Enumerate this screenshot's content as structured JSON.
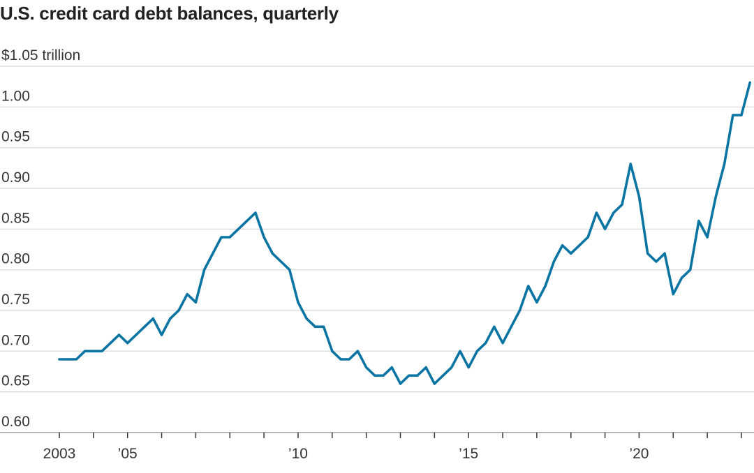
{
  "chart_data": {
    "type": "line",
    "title": "U.S. credit card debt balances, quarterly",
    "xlabel": "",
    "ylabel": "",
    "ylim": [
      0.6,
      1.05
    ],
    "y_ticks": [
      {
        "value": 1.05,
        "label": "$1.05 trillion"
      },
      {
        "value": 1.0,
        "label": "1.00"
      },
      {
        "value": 0.95,
        "label": "0.95"
      },
      {
        "value": 0.9,
        "label": "0.90"
      },
      {
        "value": 0.85,
        "label": "0.85"
      },
      {
        "value": 0.8,
        "label": "0.80"
      },
      {
        "value": 0.75,
        "label": "0.75"
      },
      {
        "value": 0.7,
        "label": "0.70"
      },
      {
        "value": 0.65,
        "label": "0.65"
      },
      {
        "value": 0.6,
        "label": "0.60"
      }
    ],
    "x_tick_years": [
      2003,
      2004,
      2005,
      2006,
      2007,
      2008,
      2009,
      2010,
      2011,
      2012,
      2013,
      2014,
      2015,
      2016,
      2017,
      2018,
      2019,
      2020,
      2021,
      2022,
      2023
    ],
    "x_tick_labels": [
      {
        "year": 2003,
        "label": "2003"
      },
      {
        "year": 2005,
        "label": "’05"
      },
      {
        "year": 2010,
        "label": "’10"
      },
      {
        "year": 2015,
        "label": "’15"
      },
      {
        "year": 2020,
        "label": "’20"
      }
    ],
    "grid": true,
    "legend": "none",
    "colors": {
      "line": "#0a74a3",
      "grid": "#d6d6d6",
      "text": "#222222"
    },
    "series": [
      {
        "x": [
          "2003 Q1",
          "2003 Q2",
          "2003 Q3",
          "2003 Q4",
          "2004 Q1",
          "2004 Q2",
          "2004 Q3",
          "2004 Q4",
          "2005 Q1",
          "2005 Q2",
          "2005 Q3",
          "2005 Q4",
          "2006 Q1",
          "2006 Q2",
          "2006 Q3",
          "2006 Q4",
          "2007 Q1",
          "2007 Q2",
          "2007 Q3",
          "2007 Q4",
          "2008 Q1",
          "2008 Q2",
          "2008 Q3",
          "2008 Q4",
          "2009 Q1",
          "2009 Q2",
          "2009 Q3",
          "2009 Q4",
          "2010 Q1",
          "2010 Q2",
          "2010 Q3",
          "2010 Q4",
          "2011 Q1",
          "2011 Q2",
          "2011 Q3",
          "2011 Q4",
          "2012 Q1",
          "2012 Q2",
          "2012 Q3",
          "2012 Q4",
          "2013 Q1",
          "2013 Q2",
          "2013 Q3",
          "2013 Q4",
          "2014 Q1",
          "2014 Q2",
          "2014 Q3",
          "2014 Q4",
          "2015 Q1",
          "2015 Q2",
          "2015 Q3",
          "2015 Q4",
          "2016 Q1",
          "2016 Q2",
          "2016 Q3",
          "2016 Q4",
          "2017 Q1",
          "2017 Q2",
          "2017 Q3",
          "2017 Q4",
          "2018 Q1",
          "2018 Q2",
          "2018 Q3",
          "2018 Q4",
          "2019 Q1",
          "2019 Q2",
          "2019 Q3",
          "2019 Q4",
          "2020 Q1",
          "2020 Q2",
          "2020 Q3",
          "2020 Q4",
          "2021 Q1",
          "2021 Q2",
          "2021 Q3",
          "2021 Q4",
          "2022 Q1",
          "2022 Q2",
          "2022 Q3",
          "2022 Q4",
          "2023 Q1",
          "2023 Q2"
        ],
        "values": [
          0.69,
          0.69,
          0.69,
          0.7,
          0.7,
          0.7,
          0.71,
          0.72,
          0.71,
          0.72,
          0.73,
          0.74,
          0.72,
          0.74,
          0.75,
          0.77,
          0.76,
          0.8,
          0.82,
          0.84,
          0.84,
          0.85,
          0.86,
          0.87,
          0.84,
          0.82,
          0.81,
          0.8,
          0.76,
          0.74,
          0.73,
          0.73,
          0.7,
          0.69,
          0.69,
          0.7,
          0.68,
          0.67,
          0.67,
          0.68,
          0.66,
          0.67,
          0.67,
          0.68,
          0.66,
          0.67,
          0.68,
          0.7,
          0.68,
          0.7,
          0.71,
          0.73,
          0.71,
          0.73,
          0.75,
          0.78,
          0.76,
          0.78,
          0.81,
          0.83,
          0.82,
          0.83,
          0.84,
          0.87,
          0.85,
          0.87,
          0.88,
          0.93,
          0.89,
          0.82,
          0.81,
          0.82,
          0.77,
          0.79,
          0.8,
          0.86,
          0.84,
          0.89,
          0.93,
          0.99,
          0.99,
          1.03
        ]
      }
    ]
  }
}
